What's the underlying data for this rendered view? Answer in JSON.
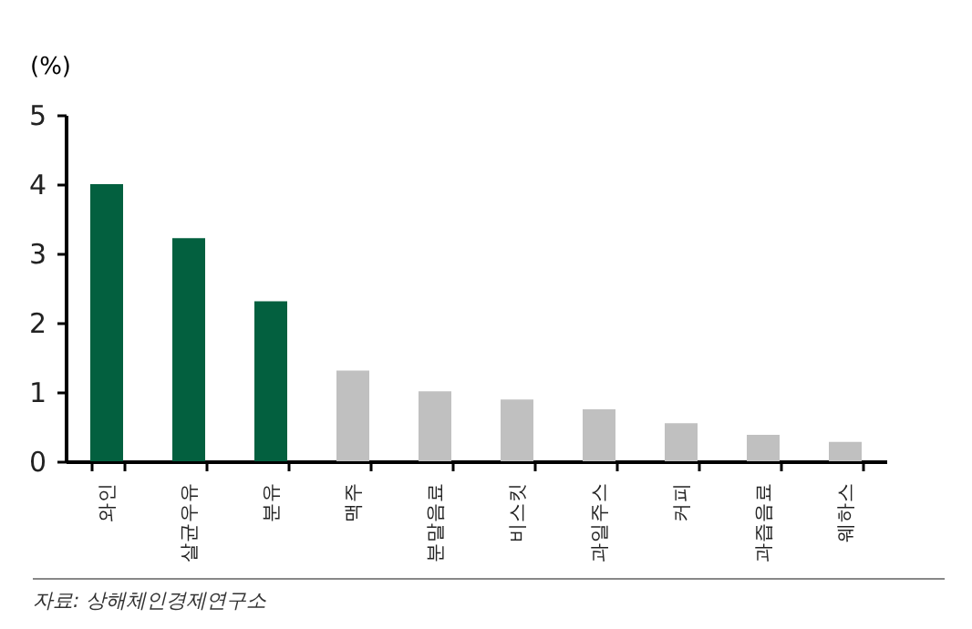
{
  "chart_data": {
    "type": "bar",
    "ylabel": "(%)",
    "categories": [
      "와인",
      "살균우유",
      "분유",
      "맥주",
      "분말음료",
      "비스킷",
      "과일주스",
      "커피",
      "과즙음료",
      "웨하스"
    ],
    "values": [
      4.0,
      3.22,
      2.31,
      1.31,
      1.01,
      0.89,
      0.75,
      0.55,
      0.38,
      0.28
    ],
    "colors": [
      "#03603f",
      "#03603f",
      "#03603f",
      "#c0c0c0",
      "#c0c0c0",
      "#c0c0c0",
      "#c0c0c0",
      "#c0c0c0",
      "#c0c0c0",
      "#c0c0c0"
    ],
    "ylim": [
      0,
      5
    ],
    "yticks": [
      0,
      1,
      2,
      3,
      4,
      5
    ],
    "grid": false,
    "annotations": [
      "자료: 상해체인경제연구소"
    ]
  }
}
